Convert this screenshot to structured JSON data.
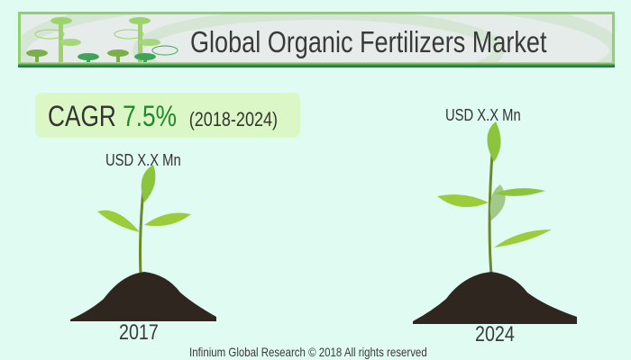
{
  "header": {
    "title": "Global Organic Fertilizers Market"
  },
  "cagr": {
    "label": "CAGR",
    "value": "7.5%",
    "period": "(2018-2024)"
  },
  "markets": [
    {
      "year": "2017",
      "value_label": "USD X.X Mn"
    },
    {
      "year": "2024",
      "value_label": "USD X.X Mn"
    }
  ],
  "footer": {
    "copyright": "Infinium Global Research © 2018 All rights reserved"
  },
  "colors": {
    "background": "#e0fbf2",
    "accent_green": "#1f8a2b",
    "banner_border": "#8fd16a",
    "cagr_box": "#dcf7c6"
  }
}
